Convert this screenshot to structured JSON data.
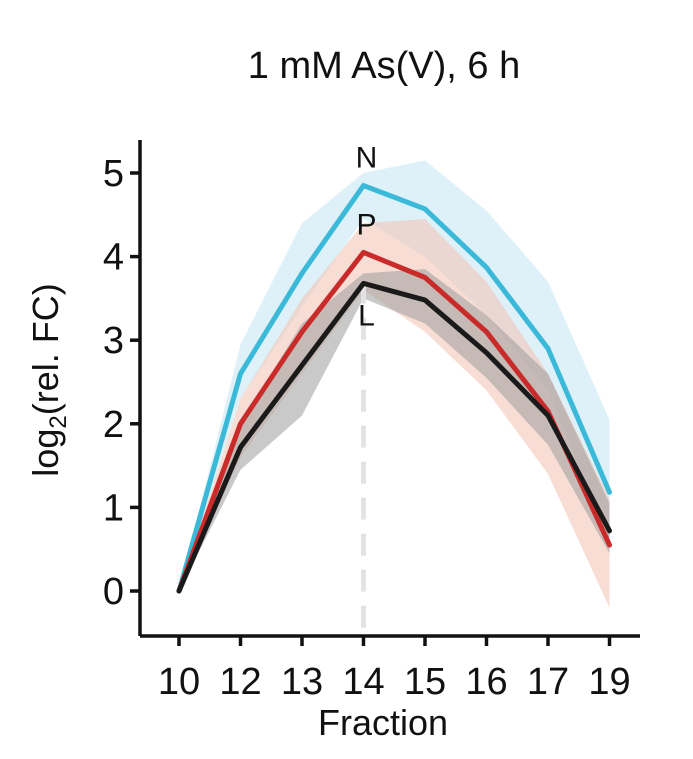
{
  "chart_data": {
    "type": "line",
    "title": "1 mM As(V), 6 h",
    "xlabel": "Fraction",
    "ylabel_main": "log",
    "ylabel_sub": "2",
    "ylabel_rest": "(rel. FC)",
    "x": [
      10,
      12,
      13,
      14,
      15,
      16,
      17,
      19
    ],
    "x_tick_labels": [
      "10",
      "12",
      "13",
      "14",
      "15",
      "16",
      "17",
      "19"
    ],
    "y_ticks": [
      0,
      1,
      2,
      3,
      4,
      5
    ],
    "ylim": [
      -0.5,
      5.4
    ],
    "grid": false,
    "reference_line_x": 14,
    "series": [
      {
        "name": "N",
        "color": "#3bb9d8",
        "band_color": "#cdeaf6",
        "values": [
          0.0,
          2.6,
          3.8,
          4.85,
          4.57,
          3.87,
          2.9,
          1.18
        ],
        "lower": [
          0.0,
          2.3,
          3.4,
          4.45,
          4.0,
          3.3,
          2.4,
          0.6
        ],
        "upper": [
          0.0,
          2.95,
          4.4,
          5.0,
          5.15,
          4.55,
          3.7,
          2.05
        ]
      },
      {
        "name": "P",
        "color": "#c92a2a",
        "band_color": "#f3c6b8",
        "values": [
          0.0,
          2.0,
          3.1,
          4.05,
          3.75,
          3.1,
          2.15,
          0.55
        ],
        "lower": [
          0.0,
          1.6,
          2.6,
          3.6,
          3.1,
          2.4,
          1.4,
          -0.2
        ],
        "upper": [
          0.0,
          2.3,
          3.5,
          4.4,
          4.45,
          3.7,
          2.6,
          1.1
        ]
      },
      {
        "name": "L",
        "color": "#1a1a1a",
        "band_color": "#9d9d9d",
        "values": [
          0.0,
          1.72,
          2.7,
          3.68,
          3.48,
          2.85,
          2.1,
          0.72
        ],
        "lower": [
          0.0,
          1.45,
          2.1,
          3.5,
          3.2,
          2.55,
          1.75,
          0.45
        ],
        "upper": [
          0.0,
          2.0,
          3.2,
          3.8,
          3.85,
          3.3,
          2.6,
          1.05
        ]
      }
    ]
  }
}
